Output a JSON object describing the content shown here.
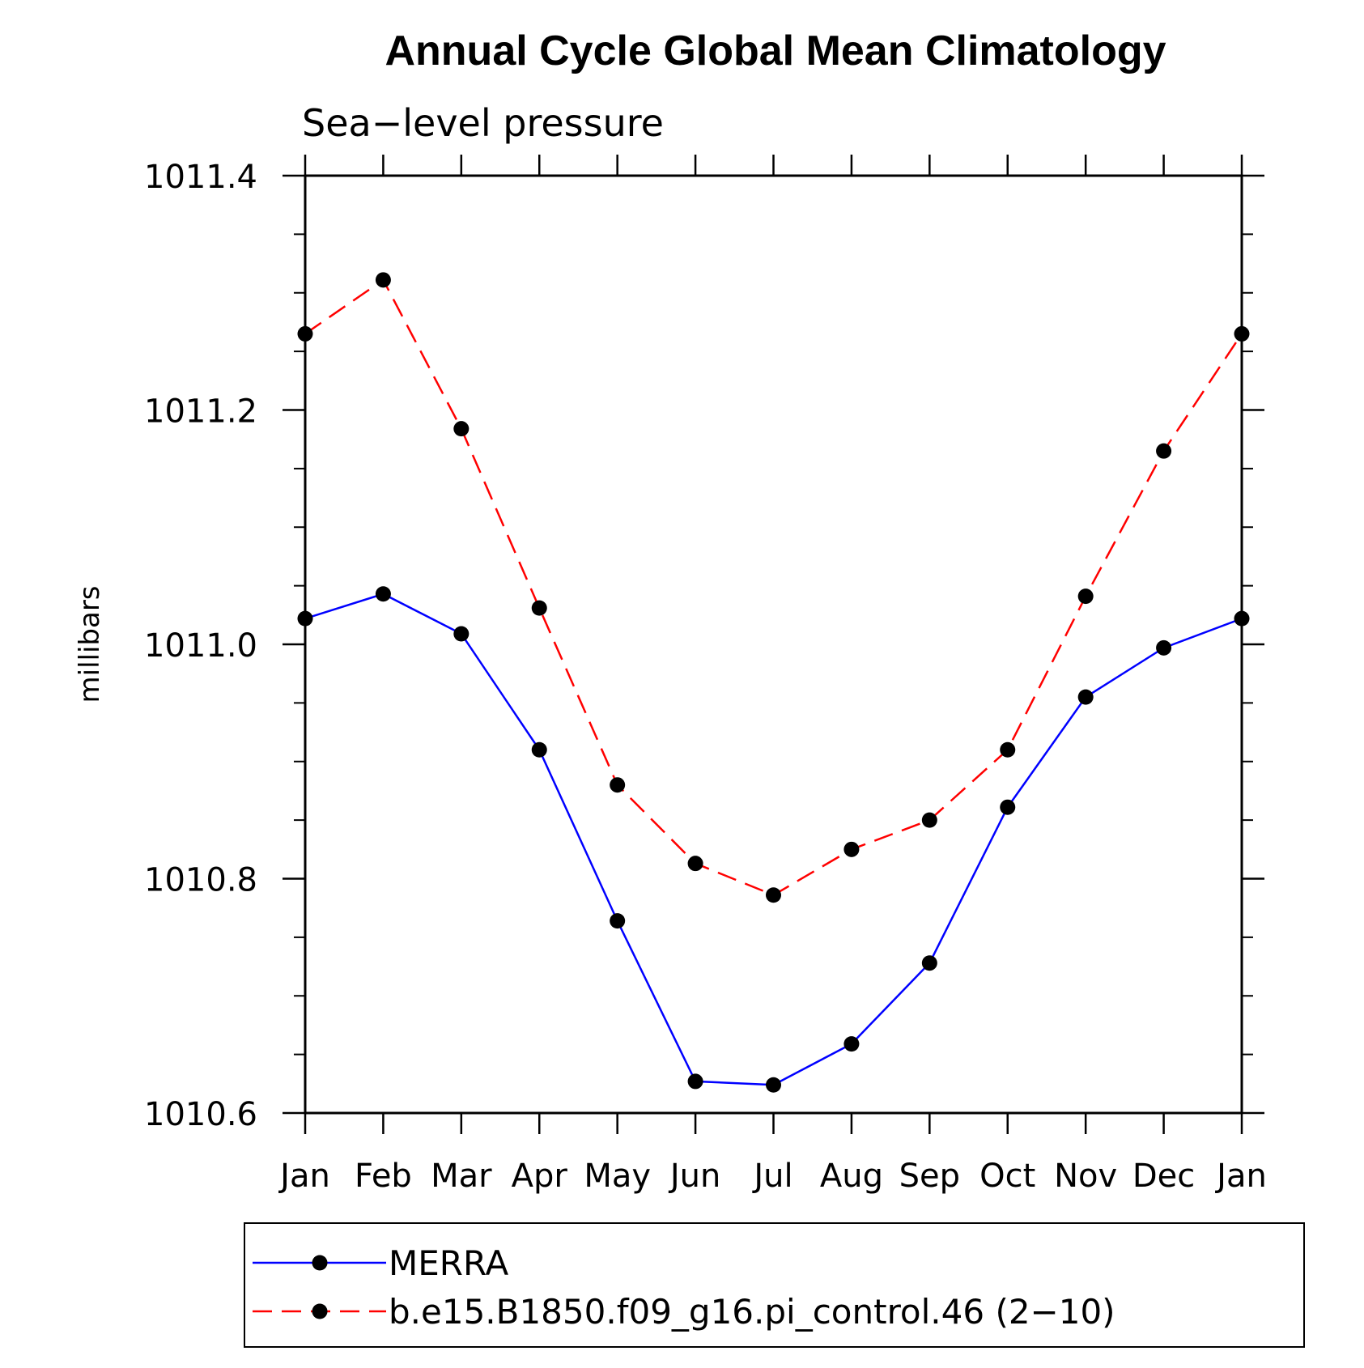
{
  "chart_data": {
    "type": "line",
    "title": "Annual Cycle Global Mean Climatology",
    "subtitle": "Sea−level pressure",
    "xlabel": "",
    "ylabel": "millibars",
    "categories": [
      "Jan",
      "Feb",
      "Mar",
      "Apr",
      "May",
      "Jun",
      "Jul",
      "Aug",
      "Sep",
      "Oct",
      "Nov",
      "Dec",
      "Jan"
    ],
    "ylim": [
      1010.6,
      1011.4
    ],
    "yticks": [
      "1010.6",
      "1010.8",
      "1011.0",
      "1011.2",
      "1011.4"
    ],
    "yminor_step": 0.05,
    "grid": false,
    "legend_position": "bottom",
    "series": [
      {
        "name": "MERRA",
        "color": "#0000ff",
        "dash": "solid",
        "marker_color": "#000000",
        "values": [
          1011.022,
          1011.043,
          1011.009,
          1010.91,
          1010.764,
          1010.627,
          1010.624,
          1010.659,
          1010.728,
          1010.861,
          1010.955,
          1010.997,
          1011.022
        ]
      },
      {
        "name": "b.e15.B1850.f09_g16.pi_control.46 (2−10)",
        "color": "#ff0000",
        "dash": "dashed",
        "marker_color": "#000000",
        "values": [
          1011.265,
          1011.311,
          1011.184,
          1011.031,
          1010.88,
          1010.813,
          1010.786,
          1010.825,
          1010.85,
          1010.91,
          1011.041,
          1011.165,
          1011.265
        ]
      }
    ]
  }
}
